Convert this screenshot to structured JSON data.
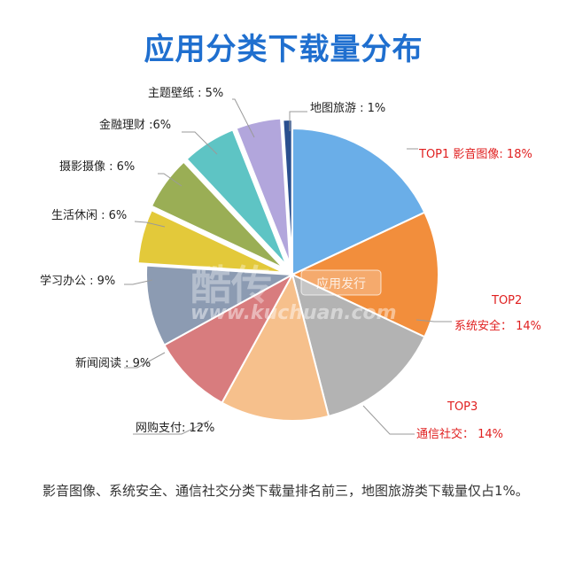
{
  "title": "应用分类下载量分布",
  "caption": "影音图像、系统安全、通信社交分类下载量排名前三，地图旅游类下载量仅占1%。",
  "watermark": {
    "logo": "酷传",
    "tag": "应用发行",
    "url": "www.kuchuan.com"
  },
  "chart_data": {
    "type": "pie",
    "title": "应用分类下载量分布",
    "slices": [
      {
        "label": "影音图像",
        "value": 18,
        "color": "#6aaee8",
        "rank": "TOP1",
        "top": true
      },
      {
        "label": "系统安全",
        "value": 14,
        "color": "#f28e3c",
        "rank": "TOP2",
        "top": true
      },
      {
        "label": "通信社交",
        "value": 14,
        "color": "#b3b3b3",
        "rank": "TOP3",
        "top": true
      },
      {
        "label": "网购支付",
        "value": 12,
        "color": "#f6c08c",
        "top": false
      },
      {
        "label": "新闻阅读",
        "value": 9,
        "color": "#d87c7e",
        "top": false
      },
      {
        "label": "学习办公",
        "value": 9,
        "color": "#8c9bb2",
        "top": false
      },
      {
        "label": "生活休闲",
        "value": 6,
        "color": "#e3c93a",
        "top": false
      },
      {
        "label": "摄影摄像",
        "value": 6,
        "color": "#9aae55",
        "top": false
      },
      {
        "label": "金融理财",
        "value": 6,
        "color": "#5ec4c4",
        "top": false
      },
      {
        "label": "主题壁纸",
        "value": 5,
        "color": "#b2a6dc",
        "top": false
      },
      {
        "label": "地图旅游",
        "value": 1,
        "color": "#2a4f8f",
        "top": false
      }
    ],
    "slice_text": [
      "影音图像: 18%",
      "系统安全： 14%",
      "通信社交： 14%",
      "网购支付: 12%",
      "新闻阅读 : 9%",
      "学习办公 : 9%",
      "生活休闲 : 6%",
      "摄影摄像 : 6%",
      "金融理财 :6%",
      "主题壁纸 : 5%",
      "地图旅游 : 1%"
    ]
  }
}
